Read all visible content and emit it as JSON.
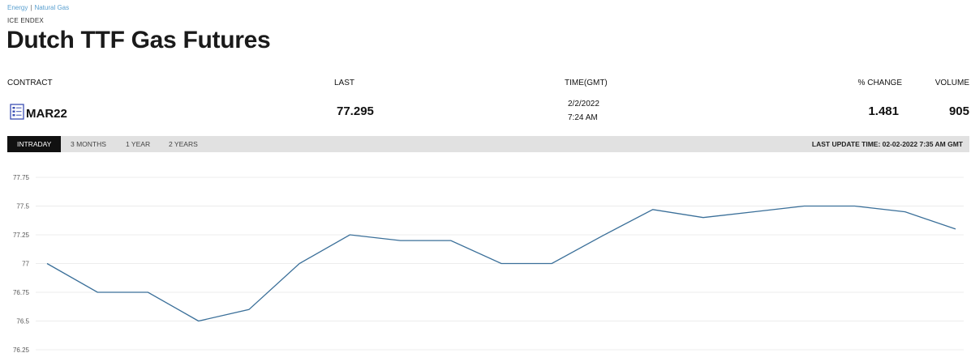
{
  "breadcrumb": {
    "items": [
      "Energy",
      "Natural Gas"
    ],
    "separator": "|"
  },
  "eyebrow": "ICE ENDEX",
  "title": "Dutch TTF Gas Futures",
  "table": {
    "headers": {
      "contract": "CONTRACT",
      "last": "LAST",
      "time": "TIME(GMT)",
      "change": "% CHANGE",
      "volume": "VOLUME"
    },
    "row": {
      "contract": "MAR22",
      "contract_icon": "contract-sheet-icon",
      "last": "77.295",
      "date": "2/2/2022",
      "time": "7:24 AM",
      "change": "1.481",
      "volume": "905"
    }
  },
  "tabs": [
    {
      "label": "INTRADAY",
      "active": true
    },
    {
      "label": "3 MONTHS",
      "active": false
    },
    {
      "label": "1 YEAR",
      "active": false
    },
    {
      "label": "2 YEARS",
      "active": false
    }
  ],
  "last_update": "LAST UPDATE TIME: 02-02-2022 7:35 AM GMT",
  "colors": {
    "line": "#3a6f99",
    "tabbar": "#e1e1e1",
    "active_tab": "#111111",
    "link": "#5aa0d0",
    "icon": "#3b4fb3"
  },
  "chart_data": {
    "type": "line",
    "yticks": [
      "77.75",
      "77.5",
      "77.25",
      "77",
      "76.75",
      "76.5",
      "76.25"
    ],
    "ylim": [
      76.25,
      77.75
    ],
    "grid": true,
    "series": [
      {
        "values": [
          77,
          76.75,
          76.75,
          76.5,
          76.6,
          77,
          77.25,
          77.2,
          77.2,
          77,
          77,
          77.24,
          77.47,
          77.4,
          77.45,
          77.5,
          77.5,
          77.45,
          77.3
        ]
      }
    ]
  }
}
